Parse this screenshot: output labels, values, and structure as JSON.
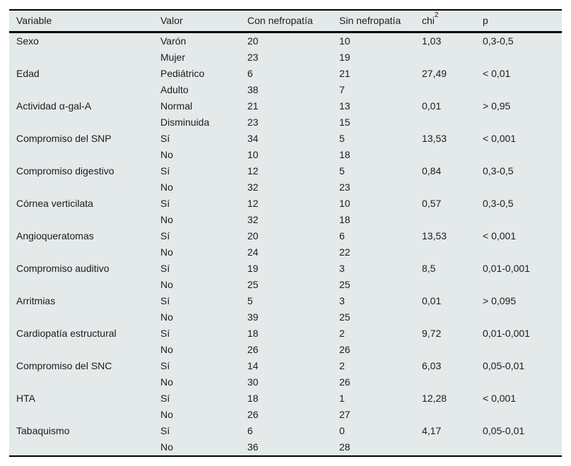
{
  "table": {
    "header": {
      "variable": "Variable",
      "valor": "Valor",
      "con": "Con nefropatía",
      "sin": "Sin nefropatía",
      "chi_base": "chi",
      "chi_sup": "2",
      "p": "p"
    },
    "rows": [
      [
        "Sexo",
        "Varón",
        "20",
        "10",
        "1,03",
        "0,3-0,5"
      ],
      [
        "",
        "Mujer",
        "23",
        "19",
        "",
        ""
      ],
      [
        "Edad",
        "Pediátrico",
        "6",
        "21",
        "27,49",
        "< 0,01"
      ],
      [
        "",
        "Adulto",
        "38",
        "7",
        "",
        ""
      ],
      [
        "Actividad α-gal-A",
        "Normal",
        "21",
        "13",
        "0,01",
        "> 0,95"
      ],
      [
        "",
        "Disminuida",
        "23",
        "15",
        "",
        ""
      ],
      [
        "Compromiso del SNP",
        "Sí",
        "34",
        "5",
        "13,53",
        "< 0,001"
      ],
      [
        "",
        "No",
        "10",
        "18",
        "",
        ""
      ],
      [
        "Compromiso digestivo",
        "Sí",
        "12",
        "5",
        "0,84",
        "0,3-0,5"
      ],
      [
        "",
        "No",
        "32",
        "23",
        "",
        ""
      ],
      [
        "Córnea verticilata",
        "Sí",
        "12",
        "10",
        "0,57",
        "0,3-0,5"
      ],
      [
        "",
        "No",
        "32",
        "18",
        "",
        ""
      ],
      [
        "Angioqueratomas",
        "Sí",
        "20",
        "6",
        "13,53",
        "< 0,001"
      ],
      [
        "",
        "No",
        "24",
        "22",
        "",
        ""
      ],
      [
        "Compromiso auditivo",
        "Sí",
        "19",
        "3",
        "8,5",
        "0,01-0,001"
      ],
      [
        "",
        "No",
        "25",
        "25",
        "",
        ""
      ],
      [
        "Arritmias",
        "Sí",
        "5",
        "3",
        "0,01",
        "> 0,095"
      ],
      [
        "",
        "No",
        "39",
        "25",
        "",
        ""
      ],
      [
        "Cardiopatía estructural",
        "Sí",
        "18",
        "2",
        "9,72",
        "0,01-0,001"
      ],
      [
        "",
        "No",
        "26",
        "26",
        "",
        ""
      ],
      [
        "Compromiso del SNC",
        "Sí",
        "14",
        "2",
        "6,03",
        "0,05-0,01"
      ],
      [
        "",
        "No",
        "30",
        "26",
        "",
        ""
      ],
      [
        "HTA",
        "Sí",
        "18",
        "1",
        "12,28",
        "< 0,001"
      ],
      [
        "",
        "No",
        "26",
        "27",
        "",
        ""
      ],
      [
        "Tabaquismo",
        "Sí",
        "6",
        "0",
        "4,17",
        "0,05-0,01"
      ],
      [
        "",
        "No",
        "36",
        "28",
        "",
        ""
      ]
    ]
  },
  "colors": {
    "table_bg": "#e4e9ea",
    "rule": "#000000",
    "text": "#1c1c1c",
    "page_bg": "#ffffff"
  }
}
